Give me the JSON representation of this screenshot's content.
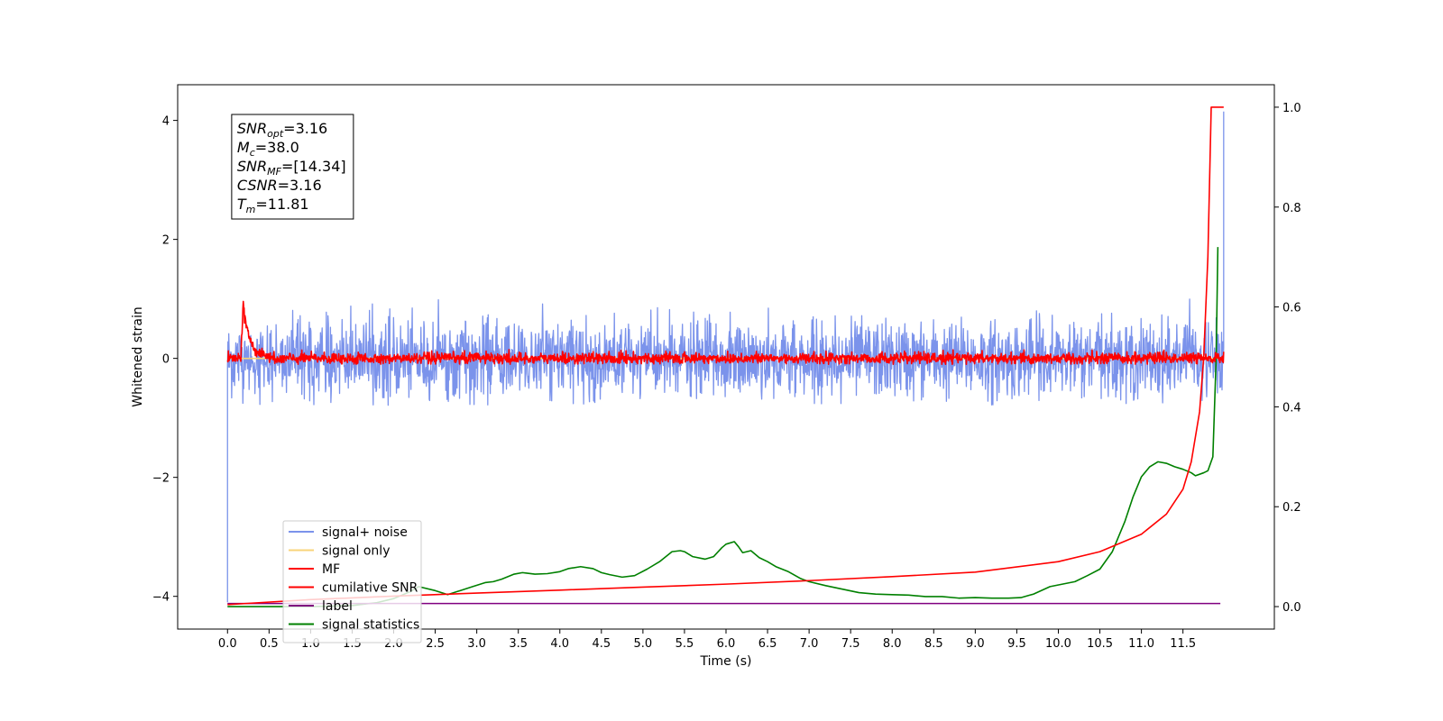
{
  "chart_data": {
    "type": "line",
    "xlabel": "Time (s)",
    "ylabel": "Whitened strain",
    "xlim": [
      -0.6,
      12.6
    ],
    "ylim": [
      -4.55,
      4.6
    ],
    "y2lim": [
      -0.045,
      1.045
    ],
    "x_ticks": [
      0.0,
      0.5,
      1.0,
      1.5,
      2.0,
      2.5,
      3.0,
      3.5,
      4.0,
      4.5,
      5.0,
      5.5,
      6.0,
      6.5,
      7.0,
      7.5,
      8.0,
      8.5,
      9.0,
      9.5,
      10.0,
      10.5,
      11.0,
      11.5
    ],
    "x_tick_labels": [
      "0.0",
      "0.5",
      "1.0",
      "1.5",
      "2.0",
      "2.5",
      "3.0",
      "3.5",
      "4.0",
      "4.5",
      "5.0",
      "5.5",
      "6.0",
      "6.5",
      "7.0",
      "7.5",
      "8.0",
      "8.5",
      "9.0",
      "9.5",
      "10.0",
      "10.5",
      "11.0",
      "11.5"
    ],
    "y_ticks": [
      -4,
      -2,
      0,
      2,
      4
    ],
    "y_tick_labels": [
      "−4",
      "−2",
      "0",
      "2",
      "4"
    ],
    "y2_ticks": [
      0.0,
      0.2,
      0.4,
      0.6,
      0.8,
      1.0
    ],
    "y2_tick_labels": [
      "0.0",
      "0.2",
      "0.4",
      "0.6",
      "0.8",
      "1.0"
    ],
    "info_box": [
      {
        "main": "SNR",
        "sub": "opt",
        "value": "=3.16"
      },
      {
        "main": "M",
        "sub": "c",
        "value": "=38.0"
      },
      {
        "main": "SNR",
        "sub": "MF",
        "value": "=[14.34]"
      },
      {
        "main": "CSNR",
        "sub": "",
        "value": "=3.16"
      },
      {
        "main": "T",
        "sub": "m",
        "value": "=11.81"
      }
    ],
    "legend": [
      {
        "label": "signal+ noise",
        "color": "#7b93eb"
      },
      {
        "label": "signal only",
        "color": "#f8d47a"
      },
      {
        "label": "MF",
        "color": "#ff0000"
      },
      {
        "label": "cumilative SNR",
        "color": "#ff0000"
      },
      {
        "label": "label",
        "color": "#800080"
      },
      {
        "label": "signal statistics",
        "color": "#008000"
      }
    ],
    "series": [
      {
        "name": "signal+ noise",
        "axis": "left",
        "color": "#7b93eb",
        "style": "noise",
        "x_range": [
          0.0,
          11.99
        ],
        "center": -0.02,
        "amplitude_range": [
          -0.8,
          1.0
        ],
        "start_value": -4.1,
        "end_value": 4.15
      },
      {
        "name": "signal only",
        "axis": "left",
        "color": "#f8d47a",
        "x": [
          0.0,
          11.99
        ],
        "y": [
          0.0,
          0.0
        ]
      },
      {
        "name": "MF",
        "axis": "left",
        "color": "#ff0000",
        "style": "noise",
        "x_range": [
          0.0,
          11.99
        ],
        "center": 0.0,
        "amplitude_range": [
          -0.1,
          0.15
        ],
        "peak": {
          "x": 0.19,
          "y": 1.0
        }
      },
      {
        "name": "cumilative SNR",
        "axis": "right",
        "color": "#ff0000",
        "x": [
          0.0,
          1.0,
          2.0,
          3.0,
          4.0,
          5.0,
          6.0,
          7.0,
          8.0,
          9.0,
          10.0,
          10.5,
          11.0,
          11.3,
          11.5,
          11.6,
          11.7,
          11.75,
          11.8,
          11.82,
          11.84,
          11.86,
          11.99
        ],
        "y": [
          0.004,
          0.014,
          0.021,
          0.027,
          0.033,
          0.039,
          0.045,
          0.052,
          0.06,
          0.069,
          0.09,
          0.11,
          0.145,
          0.185,
          0.235,
          0.29,
          0.39,
          0.5,
          0.7,
          0.85,
          1.0,
          1.0,
          1.0
        ]
      },
      {
        "name": "label",
        "axis": "left",
        "color": "#800080",
        "x": [
          0.0,
          11.95
        ],
        "y": [
          -4.12,
          -4.12
        ]
      },
      {
        "name": "signal statistics",
        "axis": "right",
        "color": "#008000",
        "x": [
          0.0,
          1.0,
          1.5,
          1.8,
          2.0,
          2.2,
          2.3,
          2.5,
          2.65,
          2.8,
          2.95,
          3.1,
          3.2,
          3.3,
          3.45,
          3.55,
          3.6,
          3.7,
          3.85,
          4.0,
          4.1,
          4.25,
          4.4,
          4.5,
          4.6,
          4.75,
          4.9,
          5.05,
          5.2,
          5.35,
          5.45,
          5.5,
          5.6,
          5.75,
          5.85,
          5.95,
          6.0,
          6.1,
          6.15,
          6.2,
          6.3,
          6.4,
          6.5,
          6.6,
          6.75,
          6.9,
          7.0,
          7.2,
          7.4,
          7.6,
          7.8,
          8.0,
          8.2,
          8.4,
          8.6,
          8.8,
          9.0,
          9.2,
          9.4,
          9.55,
          9.7,
          9.9,
          10.05,
          10.2,
          10.35,
          10.5,
          10.65,
          10.8,
          10.9,
          11.0,
          11.1,
          11.2,
          11.3,
          11.4,
          11.5,
          11.6,
          11.65,
          11.75,
          11.8,
          11.86,
          11.9,
          11.92
        ],
        "y": [
          0.0,
          0.0,
          0.002,
          0.008,
          0.016,
          0.03,
          0.04,
          0.032,
          0.024,
          0.032,
          0.04,
          0.048,
          0.05,
          0.055,
          0.065,
          0.068,
          0.067,
          0.065,
          0.066,
          0.07,
          0.076,
          0.08,
          0.076,
          0.068,
          0.064,
          0.059,
          0.062,
          0.075,
          0.09,
          0.11,
          0.112,
          0.11,
          0.1,
          0.095,
          0.1,
          0.118,
          0.125,
          0.13,
          0.12,
          0.108,
          0.112,
          0.098,
          0.09,
          0.08,
          0.07,
          0.056,
          0.05,
          0.042,
          0.035,
          0.028,
          0.025,
          0.024,
          0.023,
          0.02,
          0.02,
          0.017,
          0.018,
          0.017,
          0.017,
          0.018,
          0.025,
          0.04,
          0.045,
          0.05,
          0.062,
          0.075,
          0.11,
          0.17,
          0.22,
          0.26,
          0.28,
          0.29,
          0.287,
          0.28,
          0.275,
          0.268,
          0.262,
          0.268,
          0.272,
          0.3,
          0.5,
          0.72
        ]
      }
    ]
  }
}
